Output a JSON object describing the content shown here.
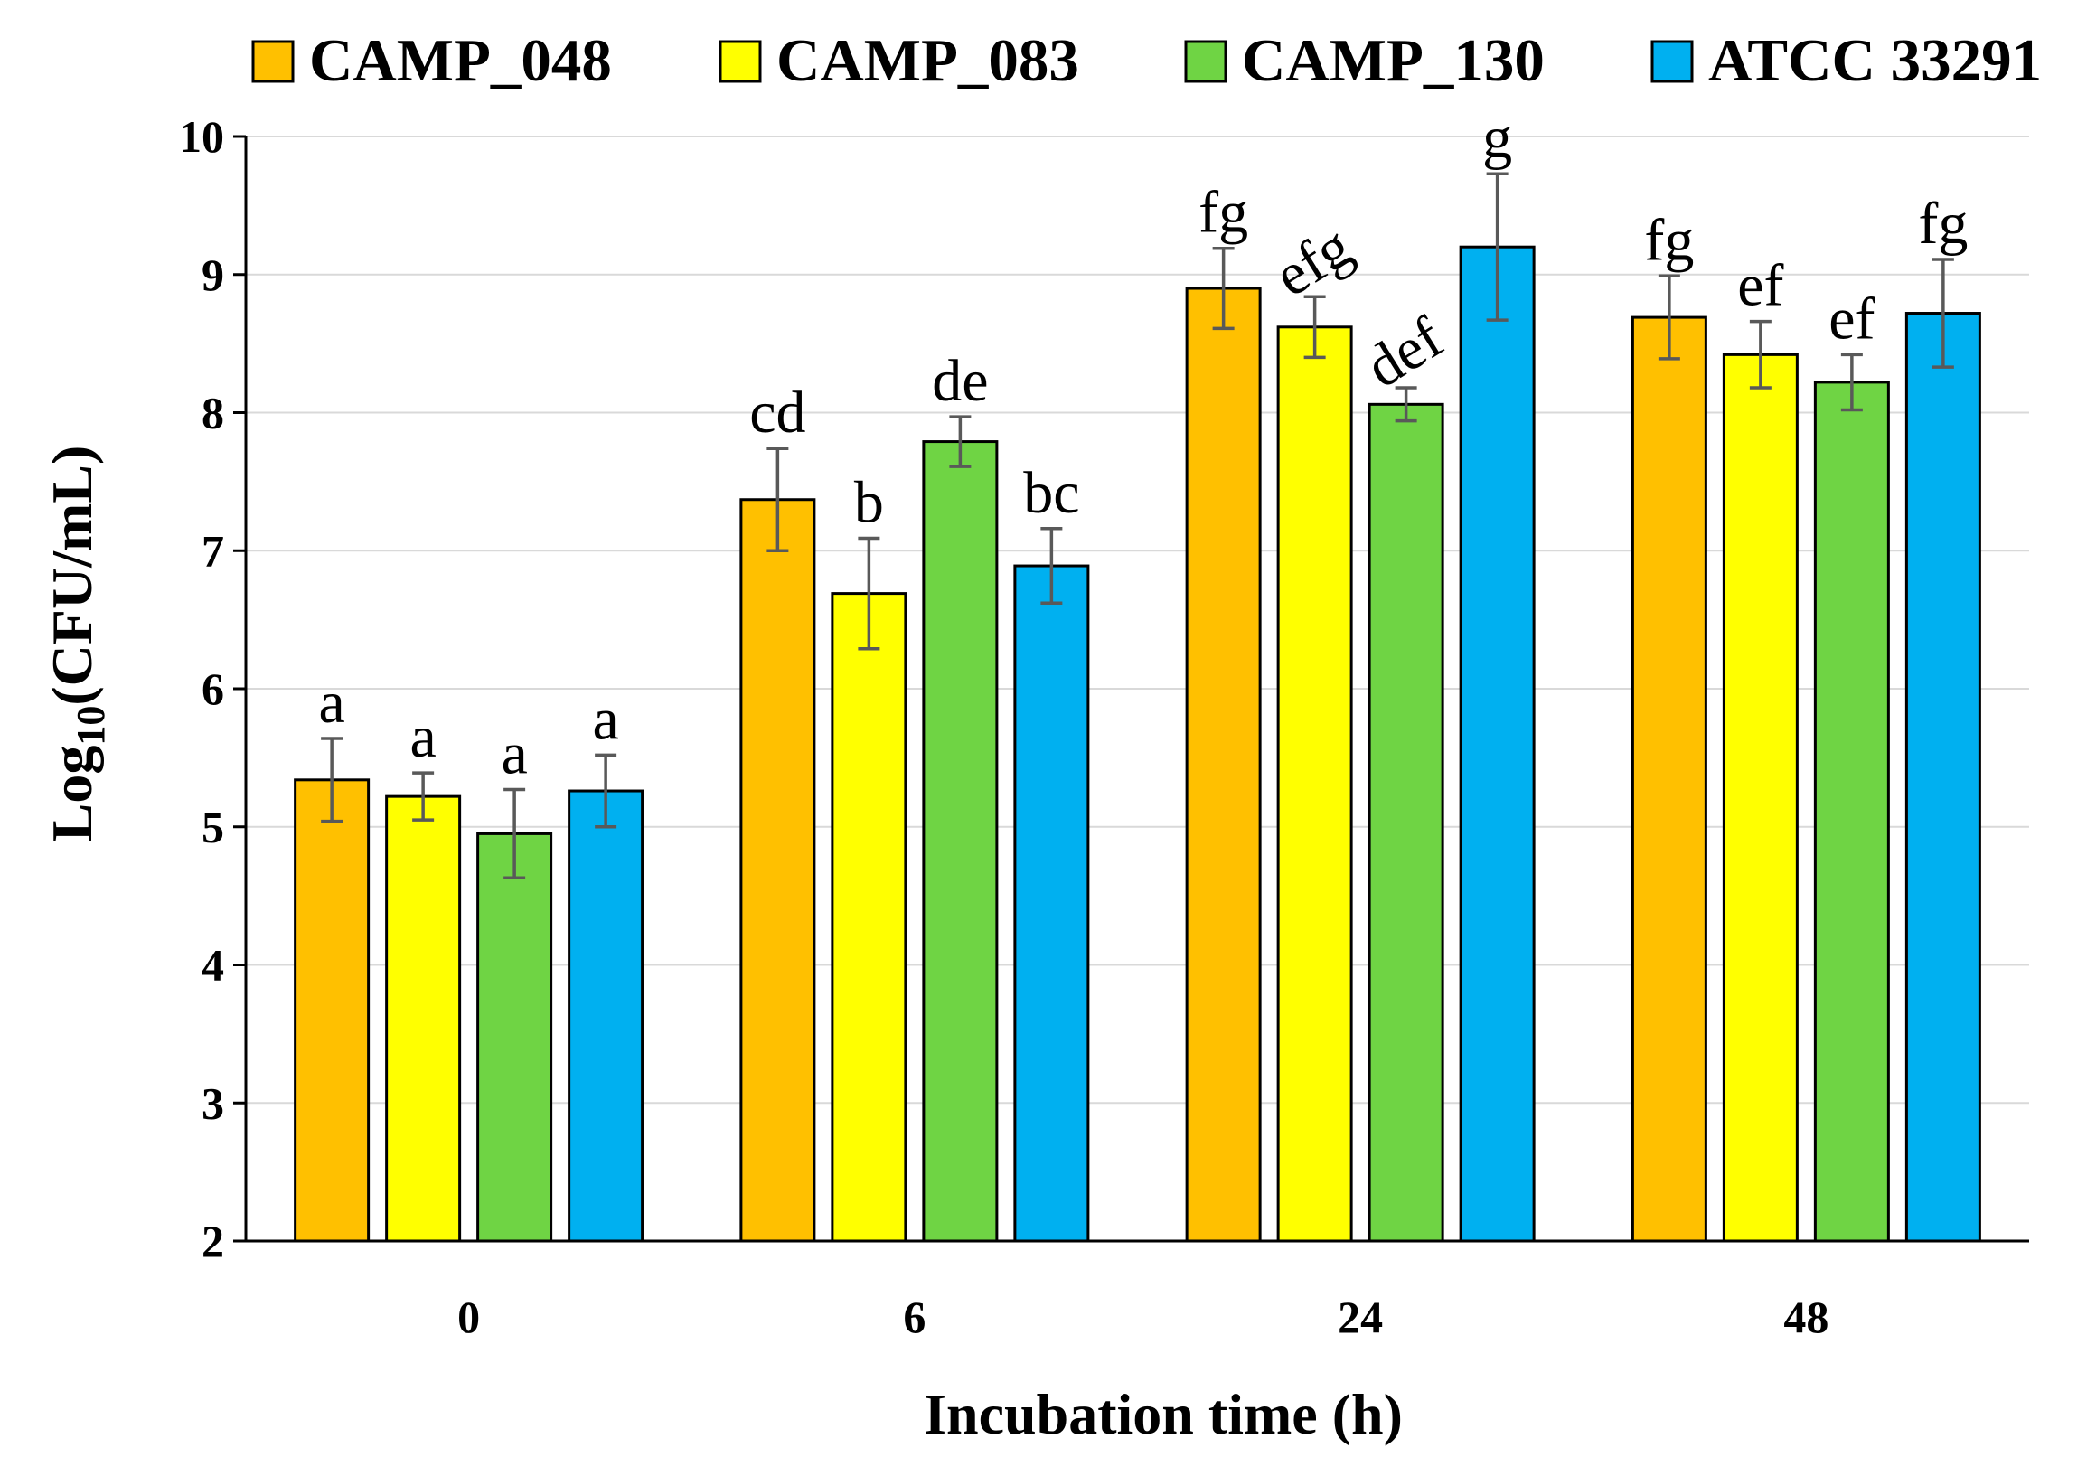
{
  "chart_data": {
    "type": "bar",
    "categories": [
      "0",
      "6",
      "24",
      "48"
    ],
    "series": [
      {
        "name": "CAMP_048",
        "color": "#FFC000",
        "values": [
          5.34,
          7.37,
          8.9,
          8.69
        ],
        "errors": [
          0.3,
          0.37,
          0.29,
          0.3
        ],
        "letters": [
          "a",
          "cd",
          "fg",
          "fg"
        ]
      },
      {
        "name": "CAMP_083",
        "color": "#FFFF00",
        "values": [
          5.22,
          6.69,
          8.62,
          8.42
        ],
        "errors": [
          0.17,
          0.4,
          0.22,
          0.24
        ],
        "letters": [
          "a",
          "b",
          "efg",
          "ef"
        ]
      },
      {
        "name": "CAMP_130",
        "color": "#6FD444",
        "values": [
          4.95,
          7.79,
          8.06,
          8.22
        ],
        "errors": [
          0.32,
          0.18,
          0.12,
          0.2
        ],
        "letters": [
          "a",
          "de",
          "def",
          "ef"
        ]
      },
      {
        "name": "ATCC 33291",
        "color": "#00B0F0",
        "values": [
          5.26,
          6.89,
          9.2,
          8.72
        ],
        "errors": [
          0.26,
          0.27,
          0.53,
          0.39
        ],
        "letters": [
          "a",
          "bc",
          "g",
          "fg"
        ]
      }
    ],
    "title": "",
    "xlabel": "Incubation time (h)",
    "ylabel": {
      "base": "Log",
      "subscript": "10",
      "suffix": "(CFU/mL)"
    },
    "ylim": [
      2,
      10
    ],
    "yticks": [
      "2",
      "3",
      "4",
      "5",
      "6",
      "7",
      "8",
      "9",
      "10"
    ],
    "grid": true,
    "legend": "top"
  }
}
